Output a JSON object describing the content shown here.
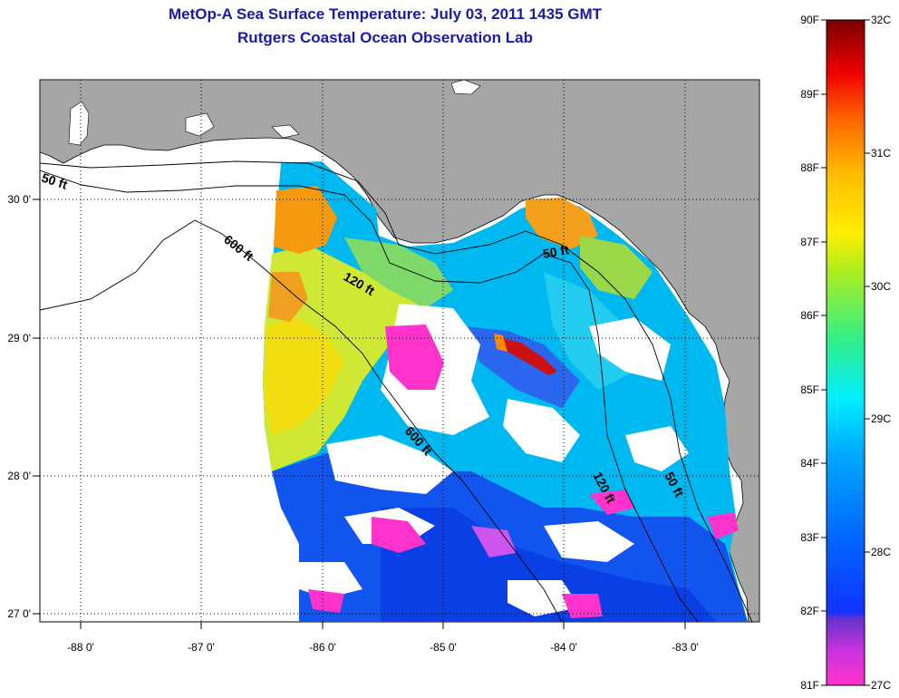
{
  "title": {
    "line1": "MetOp-A Sea Surface Temperature:  July 03, 2011 1435 GMT",
    "line2": "Rutgers Coastal Ocean Observation Lab"
  },
  "map": {
    "lon_ticks": [
      "-88 0'",
      "-87 0'",
      "-86 0'",
      "-85 0'",
      "-84 0'",
      "-83 0'"
    ],
    "lat_ticks": [
      "30 0'",
      "29 0'",
      "28 0'",
      "27 0'"
    ],
    "isobath_labels": [
      "50 ft",
      "600 ft",
      "120 ft",
      "50 ft",
      "600 ft",
      "120 ft",
      "50 ft"
    ],
    "colors": {
      "land": "#a6a6a6",
      "no_data": "#ffffff",
      "grid": "#000000",
      "contour": "#000000"
    }
  },
  "colorbar": {
    "f_labels": [
      "90F",
      "89F",
      "88F",
      "87F",
      "86F",
      "85F",
      "84F",
      "83F",
      "82F",
      "81F"
    ],
    "c_labels": [
      "32C",
      "31C",
      "30C",
      "29C",
      "28C",
      "27C"
    ],
    "range_f": [
      81,
      90
    ],
    "range_c": [
      27,
      32
    ],
    "colors": [
      "#ff33cc",
      "#8833cc",
      "#1133ff",
      "#0088ff",
      "#00e5ff",
      "#22dd88",
      "#aaee22",
      "#ffee00",
      "#ffaa00",
      "#ff5500",
      "#ee0000",
      "#880000"
    ]
  }
}
